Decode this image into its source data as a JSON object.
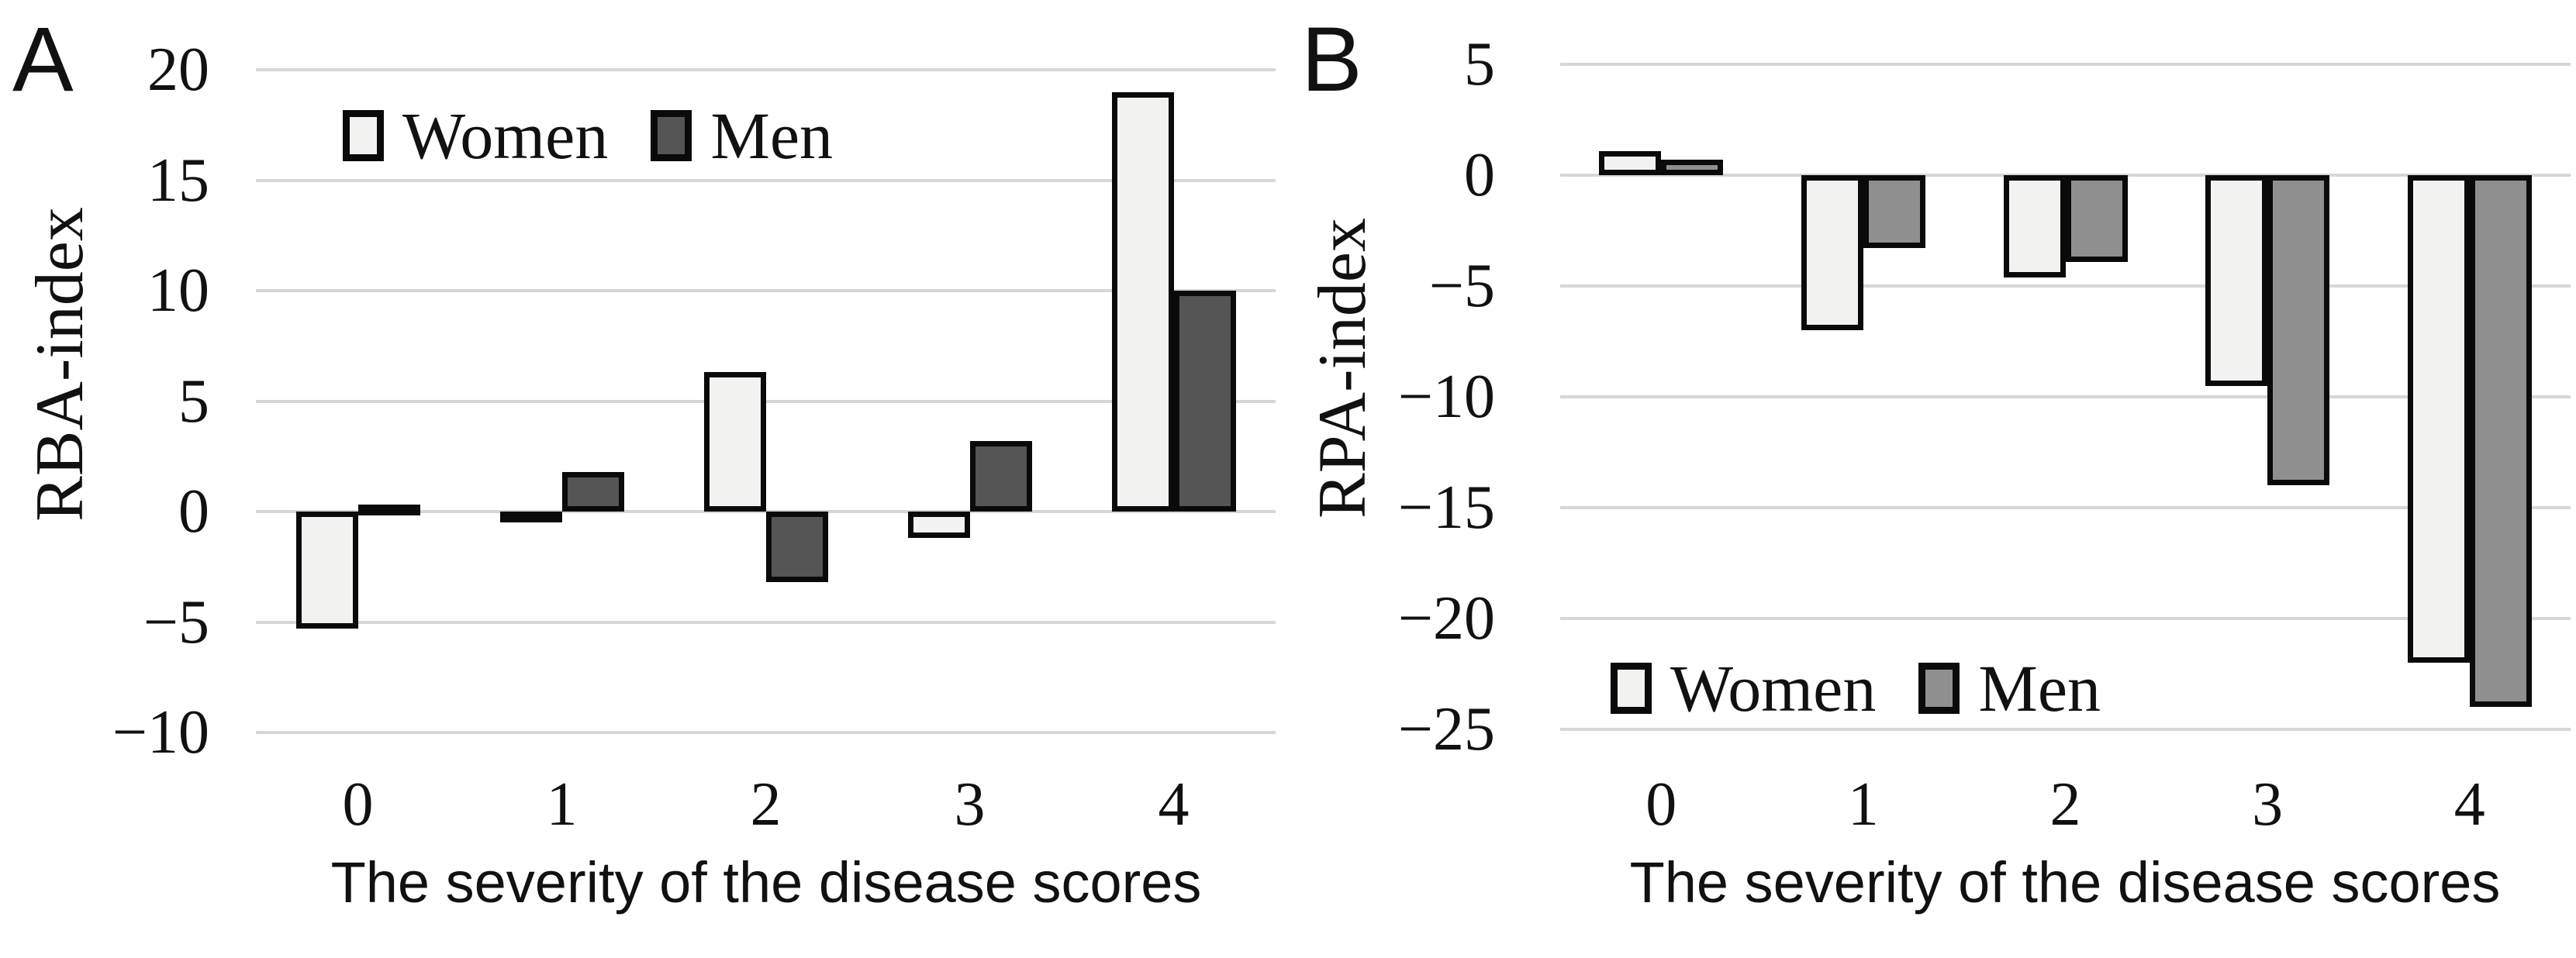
{
  "figure": {
    "panels": [
      {
        "letter": "A"
      },
      {
        "letter": "B"
      }
    ]
  },
  "chart_data": [
    {
      "type": "bar",
      "panel": "A",
      "title": "",
      "categories": [
        "0",
        "1",
        "2",
        "3",
        "4"
      ],
      "series": [
        {
          "name": "Women",
          "color": "#f2f2f0",
          "values": [
            -5.3,
            -0.2,
            6.3,
            -1.2,
            19
          ]
        },
        {
          "name": "Men",
          "color": "#555555",
          "values": [
            0.3,
            1.8,
            -3.2,
            3.2,
            10
          ]
        }
      ],
      "xlabel": "The severity of the disease scores",
      "ylabel": "RBA-index",
      "ylim": [
        -10,
        20
      ],
      "yticks": [
        20,
        15,
        10,
        5,
        0,
        -5,
        -10
      ],
      "grid": true,
      "legend_position": "inside-top-left",
      "bar_border_color": "#0a0a0a",
      "gridline_color": "#d6d6d6"
    },
    {
      "type": "bar",
      "panel": "B",
      "title": "",
      "categories": [
        "0",
        "1",
        "2",
        "3",
        "4"
      ],
      "series": [
        {
          "name": "Women",
          "color": "#f2f2f0",
          "values": [
            1.1,
            -7,
            -4.6,
            -9.5,
            -22
          ]
        },
        {
          "name": "Men",
          "color": "#8f8f8f",
          "values": [
            0.7,
            -3.3,
            -3.9,
            -14,
            -24
          ]
        }
      ],
      "xlabel": "The severity of the disease scores",
      "ylabel": "RPA-index",
      "ylim": [
        -25,
        5
      ],
      "yticks": [
        5,
        0,
        -5,
        -10,
        -15,
        -20,
        -25
      ],
      "grid": true,
      "legend_position": "inside-bottom-left",
      "bar_border_color": "#0a0a0a",
      "gridline_color": "#d6d6d6"
    }
  ]
}
